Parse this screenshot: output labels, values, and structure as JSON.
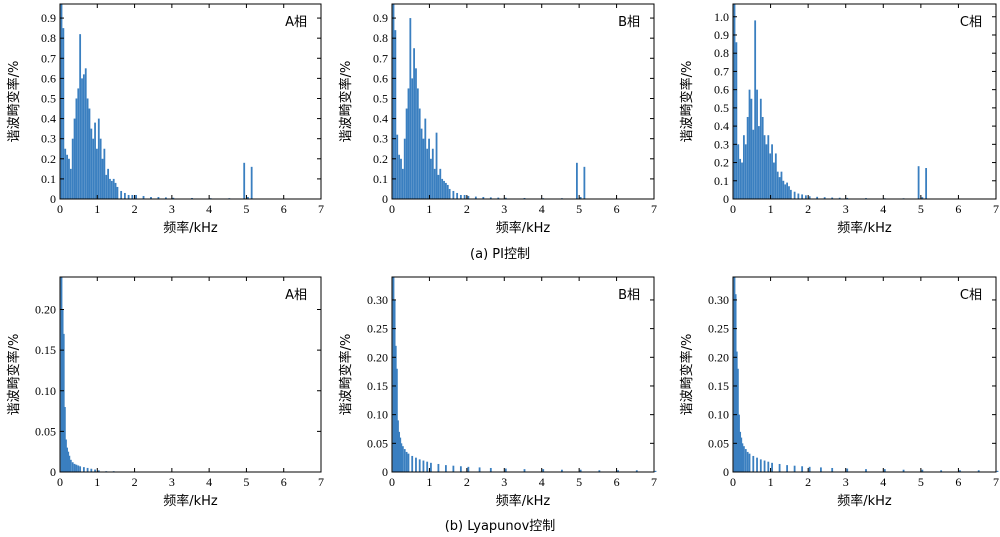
{
  "captions": {
    "top": "(a) PI控制",
    "bottom": "(b) Lyapunov控制"
  },
  "colors": {
    "bar": "#3a7fc0",
    "axis": "#000000"
  },
  "chart_data": [
    {
      "type": "bar",
      "row": "top",
      "col": 0,
      "annotation": "A相",
      "xlabel": "频率/kHz",
      "ylabel": "谐波畸变率/%",
      "xlim": [
        0,
        7
      ],
      "ylim": [
        0,
        0.97
      ],
      "xticks": [
        0,
        1,
        2,
        3,
        4,
        5,
        6,
        7
      ],
      "yticks": [
        0,
        0.1,
        0.2,
        0.3,
        0.4,
        0.5,
        0.6,
        0.7,
        0.8,
        0.9
      ],
      "ytick_labels": [
        "0",
        "0.1",
        "0.2",
        "0.3",
        "0.4",
        "0.5",
        "0.6",
        "0.7",
        "0.8",
        "0.9"
      ],
      "x": [
        0.0,
        0.05,
        0.1,
        0.15,
        0.2,
        0.25,
        0.3,
        0.35,
        0.4,
        0.45,
        0.5,
        0.55,
        0.6,
        0.65,
        0.7,
        0.75,
        0.8,
        0.85,
        0.9,
        0.95,
        1.0,
        1.05,
        1.1,
        1.15,
        1.2,
        1.25,
        1.3,
        1.35,
        1.4,
        1.45,
        1.5,
        1.6,
        1.7,
        1.8,
        1.9,
        2.0,
        2.2,
        2.4,
        2.6,
        2.8,
        3.0,
        3.5,
        4.0,
        4.5,
        4.9,
        5.0,
        5.1
      ],
      "values": [
        0.97,
        0.85,
        0.25,
        0.22,
        0.2,
        0.15,
        0.3,
        0.4,
        0.5,
        0.55,
        0.82,
        0.6,
        0.62,
        0.65,
        0.5,
        0.45,
        0.35,
        0.3,
        0.38,
        0.25,
        0.4,
        0.3,
        0.2,
        0.25,
        0.12,
        0.15,
        0.1,
        0.09,
        0.1,
        0.08,
        0.06,
        0.04,
        0.03,
        0.02,
        0.02,
        0.02,
        0.015,
        0.01,
        0.01,
        0.008,
        0.006,
        0.005,
        0.004,
        0.004,
        0.18,
        0.01,
        0.16
      ]
    },
    {
      "type": "bar",
      "row": "top",
      "col": 1,
      "annotation": "B相",
      "xlabel": "频率/kHz",
      "ylabel": "谐波畸变率/%",
      "xlim": [
        0,
        7
      ],
      "ylim": [
        0,
        0.97
      ],
      "xticks": [
        0,
        1,
        2,
        3,
        4,
        5,
        6,
        7
      ],
      "yticks": [
        0,
        0.1,
        0.2,
        0.3,
        0.4,
        0.5,
        0.6,
        0.7,
        0.8,
        0.9
      ],
      "ytick_labels": [
        "0",
        "0.1",
        "0.2",
        "0.3",
        "0.4",
        "0.5",
        "0.6",
        "0.7",
        "0.8",
        "0.9"
      ],
      "x": [
        0.0,
        0.05,
        0.1,
        0.15,
        0.2,
        0.25,
        0.3,
        0.35,
        0.4,
        0.45,
        0.5,
        0.55,
        0.6,
        0.65,
        0.7,
        0.75,
        0.8,
        0.85,
        0.9,
        0.95,
        1.0,
        1.05,
        1.1,
        1.15,
        1.2,
        1.25,
        1.3,
        1.35,
        1.4,
        1.45,
        1.5,
        1.6,
        1.7,
        1.8,
        1.9,
        2.0,
        2.2,
        2.4,
        2.6,
        2.8,
        3.0,
        3.5,
        4.0,
        4.5,
        4.9,
        5.0,
        5.1
      ],
      "values": [
        0.97,
        0.84,
        0.32,
        0.22,
        0.2,
        0.15,
        0.3,
        0.45,
        0.55,
        0.9,
        0.6,
        0.75,
        0.65,
        0.55,
        0.45,
        0.35,
        0.3,
        0.4,
        0.25,
        0.3,
        0.2,
        0.25,
        0.15,
        0.33,
        0.12,
        0.15,
        0.1,
        0.09,
        0.08,
        0.07,
        0.05,
        0.04,
        0.03,
        0.02,
        0.02,
        0.015,
        0.012,
        0.01,
        0.008,
        0.007,
        0.006,
        0.005,
        0.004,
        0.004,
        0.18,
        0.01,
        0.16
      ]
    },
    {
      "type": "bar",
      "row": "top",
      "col": 2,
      "annotation": "C相",
      "xlabel": "频率/kHz",
      "ylabel": "谐波畸变率/%",
      "xlim": [
        0,
        7
      ],
      "ylim": [
        0,
        1.07
      ],
      "xticks": [
        0,
        1,
        2,
        3,
        4,
        5,
        6,
        7
      ],
      "yticks": [
        0,
        0.1,
        0.2,
        0.3,
        0.4,
        0.5,
        0.6,
        0.7,
        0.8,
        0.9,
        1.0
      ],
      "ytick_labels": [
        "0",
        "0.1",
        "0.2",
        "0.3",
        "0.4",
        "0.5",
        "0.6",
        "0.7",
        "0.8",
        "0.9",
        "1.0"
      ],
      "x": [
        0.0,
        0.05,
        0.1,
        0.15,
        0.2,
        0.25,
        0.3,
        0.35,
        0.4,
        0.45,
        0.5,
        0.55,
        0.6,
        0.65,
        0.7,
        0.75,
        0.8,
        0.85,
        0.9,
        0.95,
        1.0,
        1.05,
        1.1,
        1.15,
        1.2,
        1.25,
        1.3,
        1.35,
        1.4,
        1.45,
        1.5,
        1.6,
        1.7,
        1.8,
        1.9,
        2.0,
        2.2,
        2.4,
        2.6,
        2.8,
        3.0,
        3.5,
        4.0,
        4.5,
        4.9,
        5.0,
        5.1
      ],
      "values": [
        1.07,
        0.86,
        0.3,
        0.22,
        0.2,
        0.35,
        0.3,
        0.45,
        0.6,
        0.55,
        0.38,
        0.98,
        0.6,
        0.4,
        0.55,
        0.45,
        0.35,
        0.3,
        0.35,
        0.25,
        0.3,
        0.2,
        0.25,
        0.15,
        0.12,
        0.15,
        0.1,
        0.08,
        0.09,
        0.07,
        0.05,
        0.04,
        0.03,
        0.025,
        0.02,
        0.015,
        0.012,
        0.01,
        0.008,
        0.007,
        0.006,
        0.005,
        0.004,
        0.004,
        0.18,
        0.01,
        0.17
      ]
    },
    {
      "type": "bar",
      "row": "bottom",
      "col": 0,
      "annotation": "A相",
      "xlabel": "频率/kHz",
      "ylabel": "谐波畸变率/%",
      "xlim": [
        0,
        7
      ],
      "ylim": [
        0,
        0.24
      ],
      "xticks": [
        0,
        1,
        2,
        3,
        4,
        5,
        6,
        7
      ],
      "yticks": [
        0,
        0.05,
        0.1,
        0.15,
        0.2
      ],
      "ytick_labels": [
        "0",
        "0.05",
        "0.10",
        "0.15",
        "0.20"
      ],
      "x": [
        0.0,
        0.03,
        0.06,
        0.09,
        0.12,
        0.15,
        0.18,
        0.21,
        0.25,
        0.3,
        0.35,
        0.4,
        0.45,
        0.5,
        0.6,
        0.7,
        0.8,
        0.9,
        1.0,
        1.2,
        1.4
      ],
      "values": [
        0.24,
        0.2,
        0.17,
        0.08,
        0.04,
        0.03,
        0.025,
        0.02,
        0.015,
        0.012,
        0.01,
        0.009,
        0.008,
        0.007,
        0.006,
        0.005,
        0.004,
        0.003,
        0.002,
        0.001,
        0.001
      ]
    },
    {
      "type": "bar",
      "row": "bottom",
      "col": 1,
      "annotation": "B相",
      "xlabel": "频率/kHz",
      "ylabel": "谐波畸变率/%",
      "xlim": [
        0,
        7
      ],
      "ylim": [
        0,
        0.34
      ],
      "xticks": [
        0,
        1,
        2,
        3,
        4,
        5,
        6,
        7
      ],
      "yticks": [
        0,
        0.05,
        0.1,
        0.15,
        0.2,
        0.25,
        0.3
      ],
      "ytick_labels": [
        "0",
        "0.05",
        "0.10",
        "0.15",
        "0.20",
        "0.25",
        "0.30"
      ],
      "x": [
        0.0,
        0.03,
        0.06,
        0.09,
        0.12,
        0.15,
        0.18,
        0.21,
        0.25,
        0.3,
        0.35,
        0.4,
        0.5,
        0.6,
        0.7,
        0.8,
        0.9,
        1.0,
        1.2,
        1.4,
        1.6,
        1.8,
        2.0,
        2.3,
        2.6,
        3.0,
        3.5,
        4.0,
        4.5,
        5.0,
        5.5,
        6.0,
        6.5,
        7.0
      ],
      "values": [
        0.34,
        0.3,
        0.22,
        0.18,
        0.09,
        0.07,
        0.06,
        0.05,
        0.045,
        0.04,
        0.035,
        0.032,
        0.028,
        0.025,
        0.022,
        0.02,
        0.018,
        0.016,
        0.014,
        0.012,
        0.011,
        0.01,
        0.009,
        0.008,
        0.007,
        0.006,
        0.005,
        0.005,
        0.004,
        0.004,
        0.003,
        0.003,
        0.003,
        0.002
      ]
    },
    {
      "type": "bar",
      "row": "bottom",
      "col": 2,
      "annotation": "C相",
      "xlabel": "频率/kHz",
      "ylabel": "谐波畸变率/%",
      "xlim": [
        0,
        7
      ],
      "ylim": [
        0,
        0.34
      ],
      "xticks": [
        0,
        1,
        2,
        3,
        4,
        5,
        6,
        7
      ],
      "yticks": [
        0,
        0.05,
        0.1,
        0.15,
        0.2,
        0.25,
        0.3
      ],
      "ytick_labels": [
        "0",
        "0.05",
        "0.10",
        "0.15",
        "0.20",
        "0.25",
        "0.30"
      ],
      "x": [
        0.0,
        0.03,
        0.06,
        0.09,
        0.12,
        0.15,
        0.18,
        0.21,
        0.25,
        0.3,
        0.35,
        0.4,
        0.5,
        0.6,
        0.7,
        0.8,
        0.9,
        1.0,
        1.2,
        1.4,
        1.6,
        1.8,
        2.0,
        2.3,
        2.6,
        3.0,
        3.5,
        4.0,
        4.5,
        5.0,
        5.5,
        6.0,
        6.5,
        7.0
      ],
      "values": [
        0.34,
        0.31,
        0.21,
        0.18,
        0.1,
        0.07,
        0.06,
        0.05,
        0.045,
        0.04,
        0.035,
        0.032,
        0.028,
        0.025,
        0.022,
        0.02,
        0.018,
        0.016,
        0.014,
        0.012,
        0.011,
        0.01,
        0.009,
        0.008,
        0.007,
        0.006,
        0.005,
        0.005,
        0.004,
        0.004,
        0.003,
        0.003,
        0.003,
        0.002
      ]
    }
  ]
}
